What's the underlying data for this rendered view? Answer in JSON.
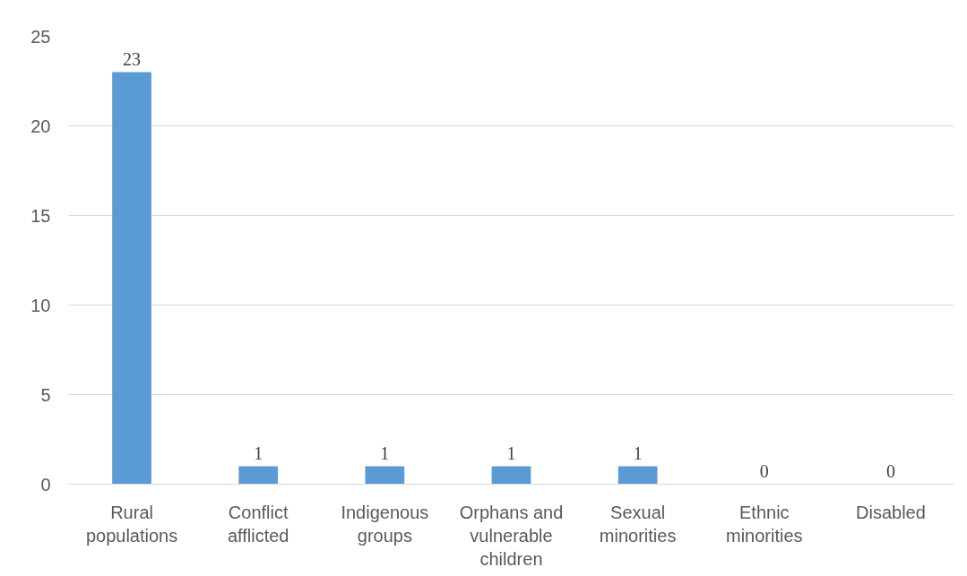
{
  "chart_data": {
    "type": "bar",
    "categories": [
      "Rural populations",
      "Conflict afflicted",
      "Indigenous groups",
      "Orphans and vulnerable children",
      "Sexual minorities",
      "Ethnic minorities",
      "Disabled"
    ],
    "values": [
      23,
      1,
      1,
      1,
      1,
      0,
      0
    ],
    "color": "#5b9bd5",
    "ylim": [
      0,
      25
    ],
    "yticks": [
      0,
      5,
      10,
      15,
      20,
      25
    ],
    "grid": "y",
    "data_labels": true
  }
}
